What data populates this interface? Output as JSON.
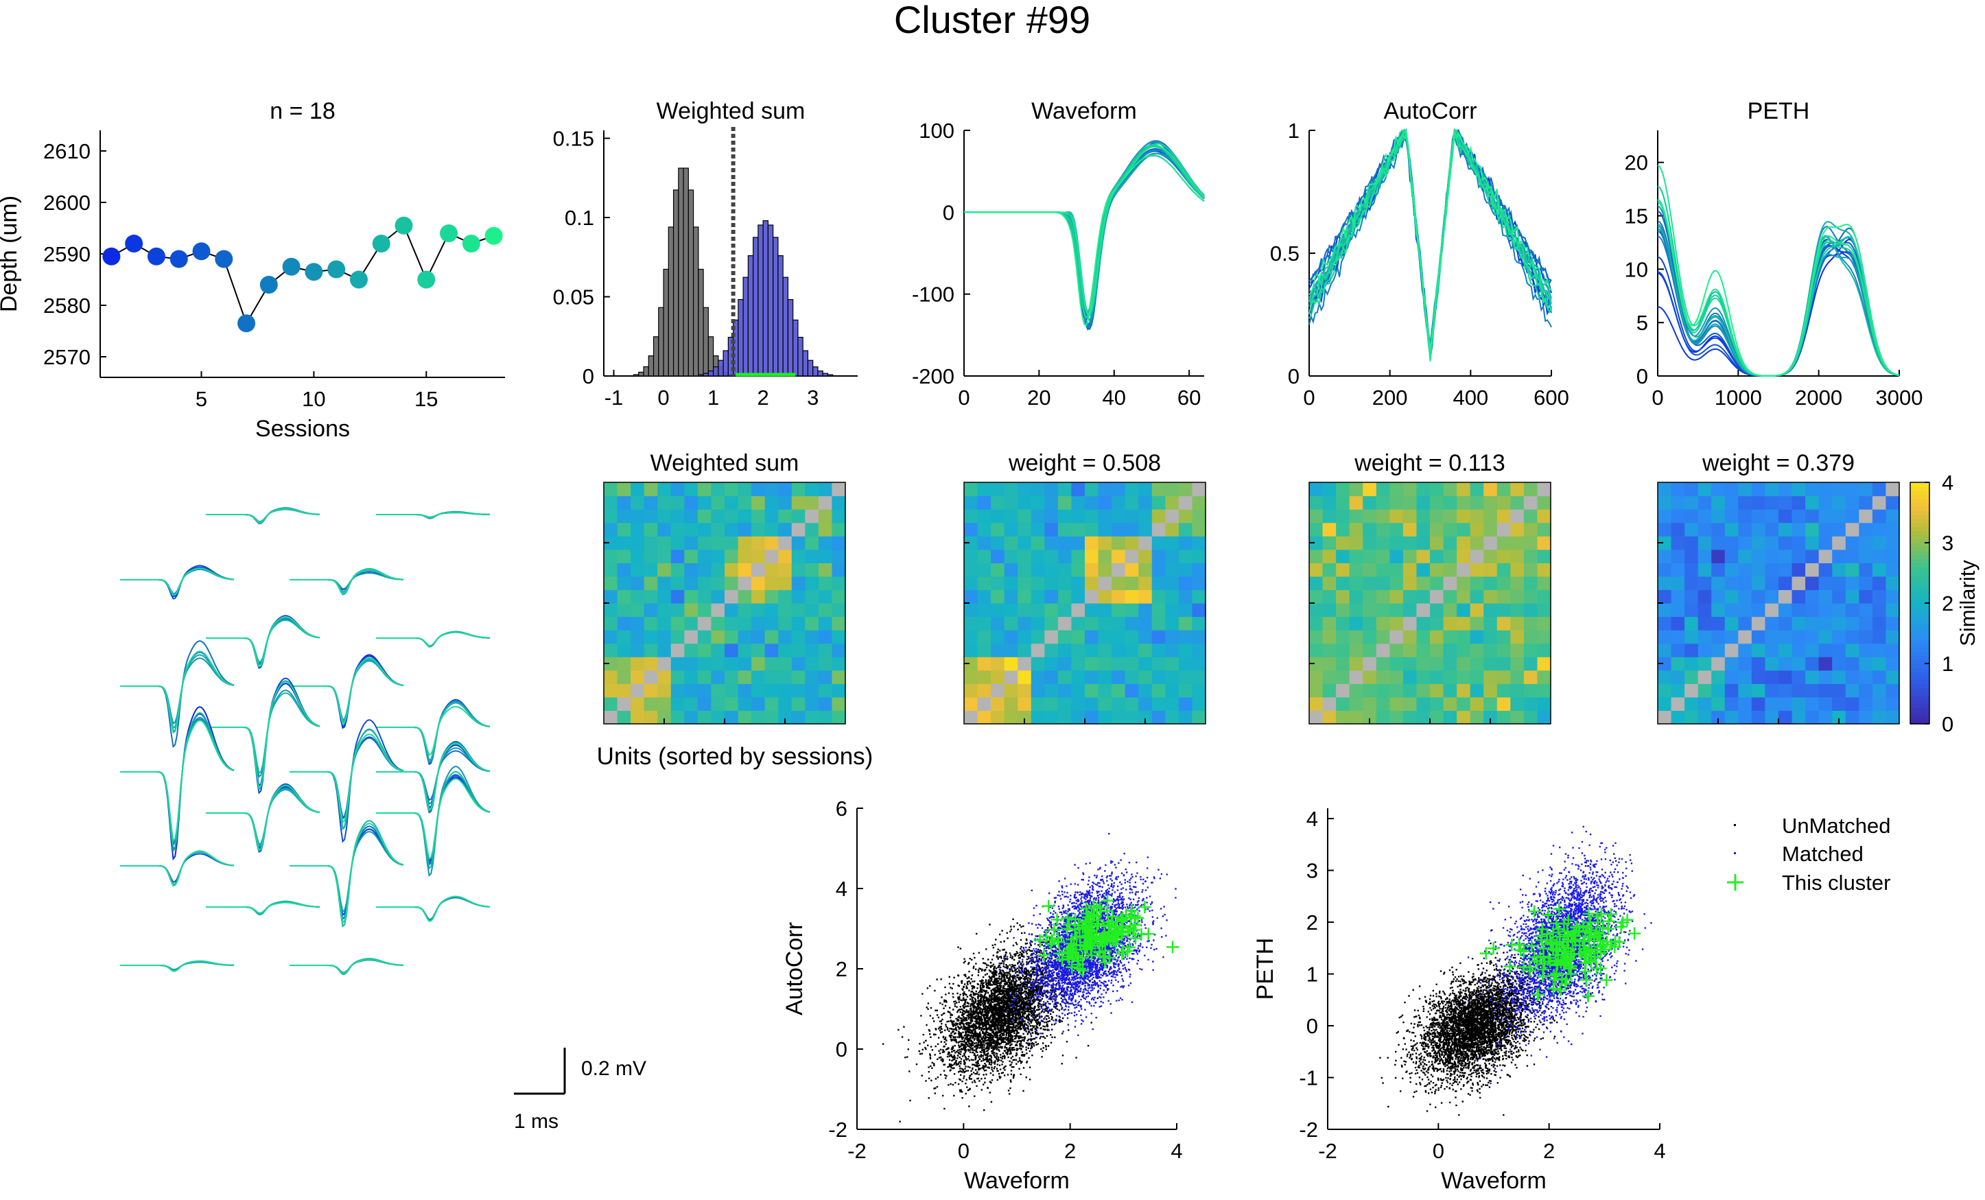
{
  "figure_title": "Cluster #99",
  "colors": {
    "session_start": "#0a2be6",
    "session_end": "#1cf08c",
    "unmatched": "#000000",
    "matched": "#1a1ae6",
    "this_cluster": "#22ee22",
    "hist_unmatched": "#6e6e6e",
    "hist_matched": "#5b5bd6",
    "diag_gray": "#b4b4b4",
    "cmap_low": "#3e26a8",
    "cmap_mid": "#15b3c6",
    "cmap_high": "#f9e31b"
  },
  "scale_bar": {
    "voltage_label": "0.2 mV",
    "time_label": "1 ms"
  },
  "chart_data": [
    {
      "id": "depth",
      "type": "line",
      "title": "n = 18",
      "xlabel": "Sessions",
      "ylabel": "Depth (um)",
      "xlim": [
        0.5,
        18.5
      ],
      "ylim": [
        2566,
        2614
      ],
      "xticks": [
        5,
        10,
        15
      ],
      "yticks": [
        2570,
        2580,
        2590,
        2600,
        2610
      ],
      "x": [
        1,
        2,
        3,
        4,
        5,
        6,
        7,
        8,
        9,
        10,
        11,
        12,
        13,
        14,
        15,
        16,
        17,
        18
      ],
      "y": [
        2589.5,
        2592,
        2589.5,
        2589,
        2590.5,
        2589,
        2576.5,
        2584,
        2587.5,
        2586.5,
        2587,
        2585,
        2592,
        2595.5,
        2585,
        2594,
        2592,
        2593.5
      ]
    },
    {
      "id": "weighted-sum-hist",
      "type": "bar",
      "title": "Weighted sum",
      "xlim": [
        -1.2,
        3.9
      ],
      "ylim": [
        0,
        0.155
      ],
      "xticks": [
        -1,
        0,
        1,
        2,
        3
      ],
      "yticks": [
        0,
        0.05,
        0.1,
        0.15
      ],
      "ytick_labels": [
        "0",
        "0.05",
        "0.1",
        "0.15"
      ],
      "threshold": 1.4,
      "bin_width": 0.1,
      "series": [
        {
          "name": "unmatched",
          "mu": 0.4,
          "sd": 0.3,
          "peak": 0.133
        },
        {
          "name": "matched",
          "mu": 2.05,
          "sd": 0.42,
          "peak": 0.098
        }
      ]
    },
    {
      "id": "waveform",
      "type": "line",
      "title": "Waveform",
      "xlim": [
        0,
        64
      ],
      "ylim": [
        -200,
        100
      ],
      "xticks": [
        0,
        20,
        40,
        60
      ],
      "yticks": [
        -200,
        -100,
        0,
        100
      ],
      "n_lines": 18
    },
    {
      "id": "autocorr",
      "type": "line",
      "title": "AutoCorr",
      "xlim": [
        0,
        600
      ],
      "ylim": [
        0,
        1
      ],
      "xticks": [
        0,
        200,
        400,
        600
      ],
      "yticks": [
        0,
        0.5,
        1
      ],
      "ytick_labels": [
        "0",
        "0.5",
        "1"
      ],
      "n_lines": 18
    },
    {
      "id": "peth",
      "type": "line",
      "title": "PETH",
      "xlim": [
        0,
        3000
      ],
      "ylim": [
        0,
        23
      ],
      "xticks": [
        0,
        1000,
        2000,
        3000
      ],
      "yticks": [
        0,
        5,
        10,
        15,
        20
      ],
      "n_lines": 18
    },
    {
      "id": "sim-weighted",
      "type": "heatmap",
      "title": "Weighted sum",
      "xlabel": "Units (sorted by sessions)",
      "seed": 11,
      "clim": [
        0,
        4
      ]
    },
    {
      "id": "sim-waveform",
      "type": "heatmap",
      "title": "weight = 0.508",
      "seed": 23,
      "clim": [
        0,
        4
      ]
    },
    {
      "id": "sim-autocorr",
      "type": "heatmap",
      "title": "weight = 0.113",
      "seed": 37,
      "clim": [
        0,
        4
      ]
    },
    {
      "id": "sim-peth",
      "type": "heatmap",
      "title": "weight = 0.379",
      "seed": 53,
      "clim": [
        0,
        4
      ],
      "colorbar": {
        "label": "Similarity",
        "ticks": [
          0,
          1,
          2,
          3,
          4
        ]
      }
    },
    {
      "id": "scatter-autocorr",
      "type": "scatter",
      "xlabel": "Waveform",
      "ylabel": "AutoCorr",
      "xlim": [
        -2,
        4
      ],
      "ylim": [
        -2,
        6
      ],
      "xticks": [
        -2,
        0,
        2,
        4
      ],
      "yticks": [
        -2,
        0,
        2,
        4,
        6
      ],
      "series": [
        {
          "name": "unmatched",
          "mx": 0.65,
          "my": 0.9,
          "sx": 0.55,
          "sy": 0.75,
          "rho": 0.45,
          "n": 4500
        },
        {
          "name": "matched",
          "mx": 2.3,
          "my": 2.6,
          "sx": 0.5,
          "sy": 0.75,
          "rho": 0.4,
          "n": 3800
        },
        {
          "name": "this_cluster",
          "mx": 2.45,
          "my": 2.85,
          "sx": 0.45,
          "sy": 0.35,
          "rho": 0.3,
          "n": 150
        }
      ]
    },
    {
      "id": "scatter-peth",
      "type": "scatter",
      "xlabel": "Waveform",
      "ylabel": "PETH",
      "xlim": [
        -2,
        4
      ],
      "ylim": [
        -2,
        4.2
      ],
      "xticks": [
        -2,
        0,
        2,
        4
      ],
      "yticks": [
        -2,
        -1,
        0,
        1,
        2,
        3,
        4
      ],
      "legend": {
        "placement": "right",
        "entries": [
          "UnMatched",
          "Matched",
          "This cluster"
        ]
      },
      "series": [
        {
          "name": "unmatched",
          "mx": 0.65,
          "my": 0.0,
          "sx": 0.5,
          "sy": 0.5,
          "rho": 0.4,
          "n": 4500
        },
        {
          "name": "matched",
          "mx": 2.25,
          "my": 1.6,
          "sx": 0.5,
          "sy": 0.7,
          "rho": 0.45,
          "n": 3800
        },
        {
          "name": "this_cluster",
          "mx": 2.35,
          "my": 1.5,
          "sx": 0.45,
          "sy": 0.35,
          "rho": 0.3,
          "n": 150
        }
      ]
    }
  ]
}
